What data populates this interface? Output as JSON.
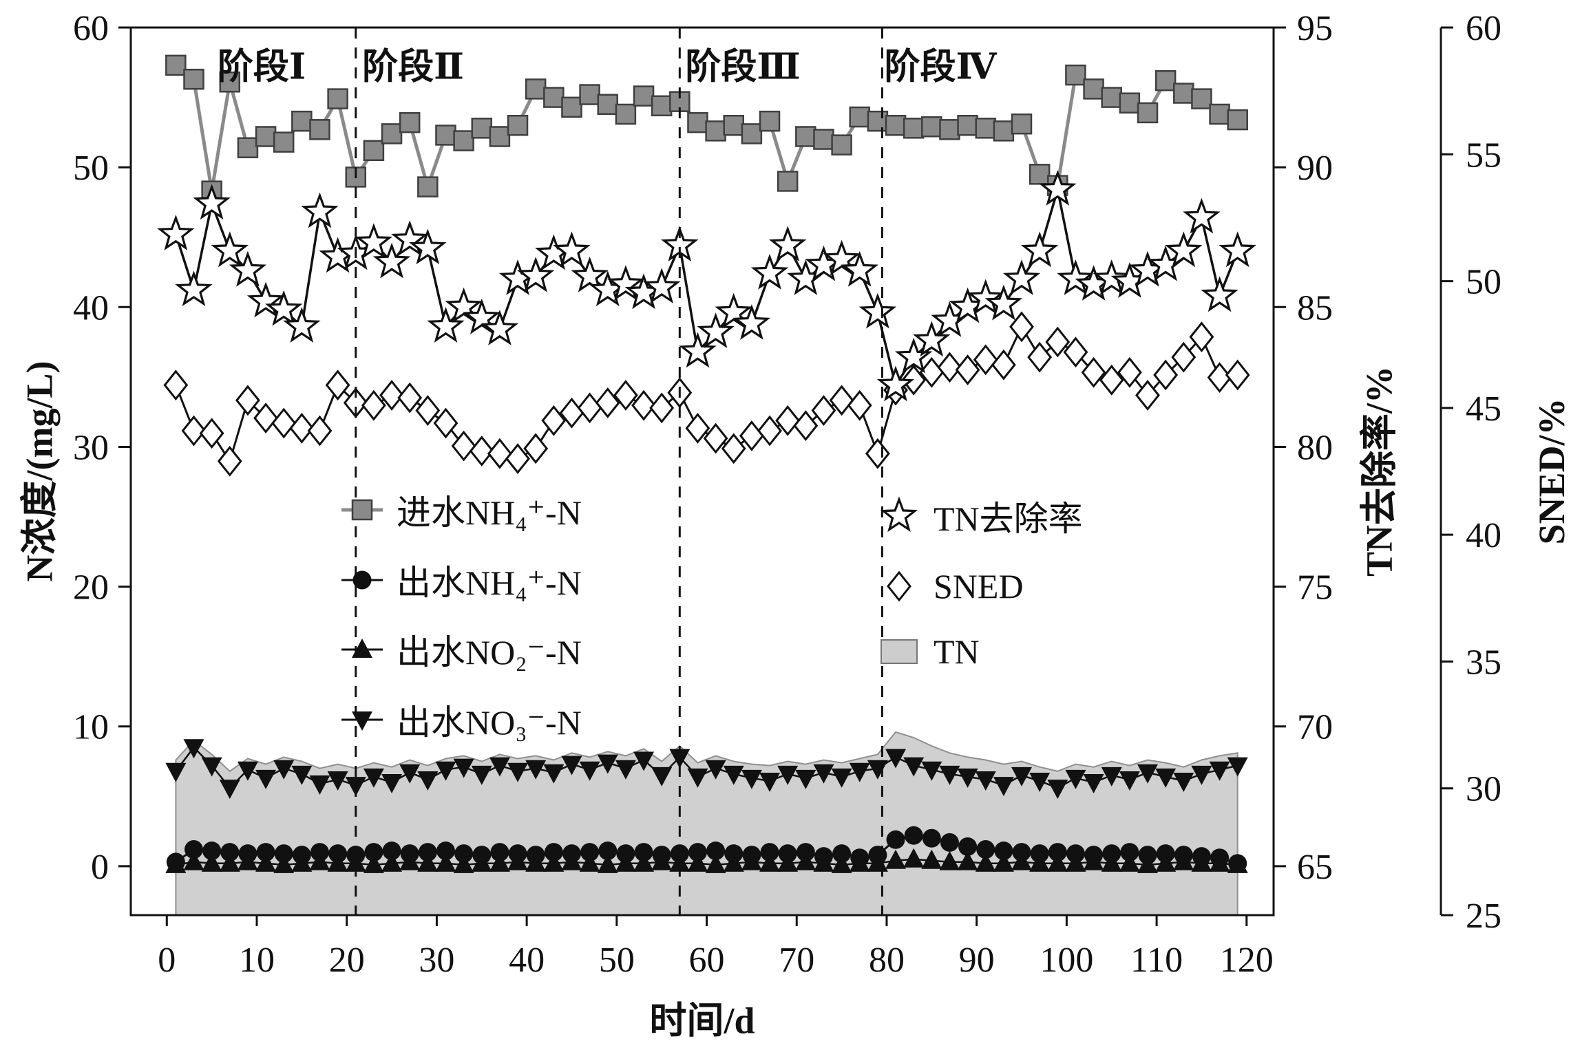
{
  "figure": {
    "background": "#ffffff"
  },
  "chart_data": {
    "type": "line",
    "x_values": [
      1,
      3,
      5,
      7,
      9,
      11,
      13,
      15,
      17,
      19,
      21,
      23,
      25,
      27,
      29,
      31,
      33,
      35,
      37,
      39,
      41,
      43,
      45,
      47,
      49,
      51,
      53,
      55,
      57,
      59,
      61,
      63,
      65,
      67,
      69,
      71,
      73,
      75,
      77,
      79,
      81,
      83,
      85,
      87,
      89,
      91,
      93,
      95,
      97,
      99,
      101,
      103,
      105,
      107,
      109,
      111,
      113,
      115,
      117,
      119
    ],
    "axes": {
      "x": {
        "title": "时间/d",
        "min": -4,
        "max": 123,
        "ticks": [
          0,
          10,
          20,
          30,
          40,
          50,
          60,
          70,
          80,
          90,
          100,
          110,
          120
        ]
      },
      "left": {
        "title": "N浓度/(mg/L)",
        "min": -3.5,
        "max": 60,
        "ticks": [
          0,
          10,
          20,
          30,
          40,
          50,
          60
        ]
      },
      "right_tn": {
        "title": "TN去除率/%",
        "min": 65,
        "max": 95,
        "ticks": [
          65,
          70,
          75,
          80,
          85,
          90,
          95
        ]
      },
      "right_sned": {
        "title": "SNED/%",
        "min": 25,
        "max": 60,
        "ticks": [
          25,
          30,
          35,
          40,
          45,
          50,
          55,
          60
        ]
      }
    },
    "phases": {
      "labels": [
        "阶段Ⅰ",
        "阶段Ⅱ",
        "阶段Ⅲ",
        "阶段Ⅳ"
      ],
      "divider_days": [
        21,
        57,
        79.5
      ],
      "label_days": [
        10.5,
        27,
        64,
        86
      ]
    },
    "legend": {
      "groups": [
        {
          "entries": [
            {
              "label": "进水NH₄⁺-N",
              "marker": "square"
            },
            {
              "label": "出水NH₄⁺-N",
              "marker": "circle"
            },
            {
              "label": "出水NO₂⁻-N",
              "marker": "triangle-up"
            },
            {
              "label": "出水NO₃⁻-N",
              "marker": "triangle-down"
            }
          ]
        },
        {
          "entries": [
            {
              "label": "TN去除率",
              "marker": "star"
            },
            {
              "label": "SNED",
              "marker": "diamond"
            },
            {
              "label": "TN",
              "marker": "area"
            }
          ]
        }
      ]
    },
    "series": [
      {
        "name": "TN",
        "type": "area",
        "axis": "left",
        "marker": "area",
        "color": "#cdcdcd",
        "line_width": 2,
        "values": [
          7.6,
          9.0,
          8.0,
          6.8,
          7.7,
          7.3,
          7.8,
          7.5,
          7.0,
          7.3,
          7.0,
          7.4,
          7.1,
          7.6,
          7.2,
          7.7,
          7.9,
          7.5,
          8.0,
          7.7,
          7.9,
          7.6,
          8.1,
          7.8,
          8.2,
          7.9,
          8.4,
          7.5,
          8.6,
          7.4,
          7.9,
          7.5,
          7.3,
          7.2,
          7.5,
          7.3,
          7.6,
          7.4,
          7.7,
          8.0,
          9.6,
          9.2,
          8.6,
          8.1,
          7.8,
          7.6,
          7.3,
          7.5,
          7.1,
          6.8,
          7.3,
          7.1,
          7.5,
          7.2,
          7.6,
          7.4,
          7.1,
          7.6,
          7.9,
          8.1
        ]
      },
      {
        "name": "出水NO₃⁻-N",
        "type": "line",
        "axis": "left",
        "marker": "triangle-down",
        "color": "#111111",
        "line_width": 2.5,
        "values": [
          6.8,
          8.5,
          7.2,
          5.6,
          6.9,
          6.3,
          7.0,
          6.6,
          5.9,
          6.2,
          5.8,
          6.4,
          6.0,
          6.7,
          6.2,
          6.9,
          7.1,
          6.6,
          7.2,
          6.8,
          7.0,
          6.7,
          7.3,
          6.9,
          7.4,
          7.0,
          7.6,
          6.5,
          7.8,
          6.4,
          7.0,
          6.6,
          6.3,
          6.1,
          6.6,
          6.3,
          6.7,
          6.4,
          6.8,
          7.0,
          7.8,
          7.2,
          6.9,
          6.6,
          6.4,
          6.2,
          5.8,
          6.5,
          6.1,
          5.6,
          6.3,
          6.0,
          6.5,
          6.2,
          6.7,
          6.4,
          6.1,
          6.6,
          6.9,
          7.2
        ]
      },
      {
        "name": "出水NO₂⁻-N",
        "type": "line",
        "axis": "left",
        "marker": "triangle-up",
        "color": "#111111",
        "line_width": 2.5,
        "values": [
          0.1,
          0.3,
          0.2,
          0.2,
          0.3,
          0.2,
          0.1,
          0.2,
          0.3,
          0.2,
          0.2,
          0.1,
          0.2,
          0.3,
          0.2,
          0.2,
          0.1,
          0.2,
          0.2,
          0.3,
          0.2,
          0.2,
          0.3,
          0.2,
          0.1,
          0.2,
          0.2,
          0.3,
          0.2,
          0.2,
          0.1,
          0.2,
          0.3,
          0.2,
          0.2,
          0.3,
          0.2,
          0.1,
          0.2,
          0.2,
          0.4,
          0.5,
          0.4,
          0.3,
          0.3,
          0.2,
          0.2,
          0.3,
          0.2,
          0.2,
          0.2,
          0.3,
          0.2,
          0.2,
          0.1,
          0.2,
          0.3,
          0.2,
          0.2,
          0.1
        ]
      },
      {
        "name": "出水NH₄⁺-N",
        "type": "line",
        "axis": "left",
        "marker": "circle",
        "color": "#111111",
        "line_width": 3,
        "values": [
          0.3,
          1.2,
          1.1,
          1.0,
          0.9,
          1.0,
          0.9,
          0.8,
          1.0,
          0.9,
          0.8,
          1.0,
          1.1,
          0.9,
          1.0,
          1.1,
          0.9,
          0.8,
          1.0,
          0.9,
          0.8,
          1.0,
          0.9,
          1.0,
          1.1,
          0.9,
          1.0,
          0.8,
          0.9,
          1.0,
          1.1,
          0.9,
          0.8,
          1.0,
          0.9,
          1.0,
          0.7,
          0.9,
          0.6,
          0.8,
          1.9,
          2.2,
          2.0,
          1.7,
          1.4,
          1.2,
          1.1,
          1.0,
          0.9,
          1.0,
          0.9,
          0.8,
          0.9,
          1.0,
          0.8,
          0.9,
          0.8,
          0.7,
          0.6,
          0.2
        ]
      },
      {
        "name": "进水NH₄⁺-N",
        "type": "line",
        "axis": "left",
        "marker": "square",
        "color": "#8a8a8a",
        "line_width": 5,
        "values": [
          57.3,
          56.3,
          48.3,
          56.1,
          51.4,
          52.2,
          51.8,
          53.3,
          52.7,
          54.9,
          49.3,
          51.2,
          52.4,
          53.2,
          48.6,
          52.3,
          51.9,
          52.8,
          52.2,
          53.0,
          55.6,
          55.0,
          54.3,
          55.2,
          54.5,
          53.8,
          55.1,
          54.4,
          54.7,
          53.2,
          52.6,
          53.0,
          52.4,
          53.3,
          49.0,
          52.2,
          52.0,
          51.6,
          53.6,
          53.3,
          53.0,
          52.8,
          52.9,
          52.7,
          53.0,
          52.8,
          52.6,
          53.1,
          49.5,
          48.7,
          56.6,
          55.6,
          55.0,
          54.6,
          53.9,
          56.2,
          55.3,
          54.9,
          53.8,
          53.4
        ]
      },
      {
        "name": "SNED",
        "type": "line",
        "axis": "right_sned",
        "marker": "diamond",
        "color": "#111111",
        "line_width": 3,
        "values": [
          45.9,
          44.1,
          44.0,
          42.9,
          45.3,
          44.6,
          44.4,
          44.2,
          44.1,
          45.9,
          45.2,
          45.1,
          45.5,
          45.4,
          44.9,
          44.4,
          43.5,
          43.3,
          43.2,
          43.0,
          43.4,
          44.5,
          44.8,
          45.0,
          45.2,
          45.5,
          45.1,
          45.0,
          45.6,
          44.2,
          43.8,
          43.4,
          43.9,
          44.1,
          44.5,
          44.3,
          44.9,
          45.3,
          45.1,
          43.2,
          45.7,
          46.1,
          46.4,
          46.6,
          46.5,
          46.9,
          46.7,
          48.2,
          47.0,
          47.6,
          47.2,
          46.4,
          46.1,
          46.4,
          45.5,
          46.3,
          47.0,
          47.8,
          46.2,
          46.3
        ]
      },
      {
        "name": "TN去除率",
        "type": "line",
        "axis": "right_tn",
        "marker": "star",
        "color": "#111111",
        "line_width": 3.5,
        "values": [
          87.6,
          85.6,
          88.7,
          87.0,
          86.3,
          85.2,
          84.9,
          84.3,
          88.4,
          86.8,
          86.9,
          87.3,
          86.6,
          87.4,
          87.1,
          84.3,
          85.0,
          84.6,
          84.2,
          86.0,
          86.1,
          86.9,
          87.0,
          86.1,
          85.6,
          85.8,
          85.5,
          85.7,
          87.2,
          83.4,
          84.1,
          84.8,
          84.4,
          86.2,
          87.2,
          86.0,
          86.5,
          86.7,
          86.3,
          84.8,
          82.2,
          83.2,
          83.8,
          84.5,
          85.0,
          85.3,
          85.1,
          86.0,
          87.0,
          89.2,
          86.0,
          85.8,
          86.0,
          85.9,
          86.3,
          86.5,
          87.0,
          88.2,
          85.4,
          87.0
        ]
      }
    ],
    "style": {
      "marker_edge": "#3f3f3f",
      "open_marker_fill": "#ffffff",
      "axis_color": "#111111",
      "area_edge": "#8f8f8f"
    }
  }
}
